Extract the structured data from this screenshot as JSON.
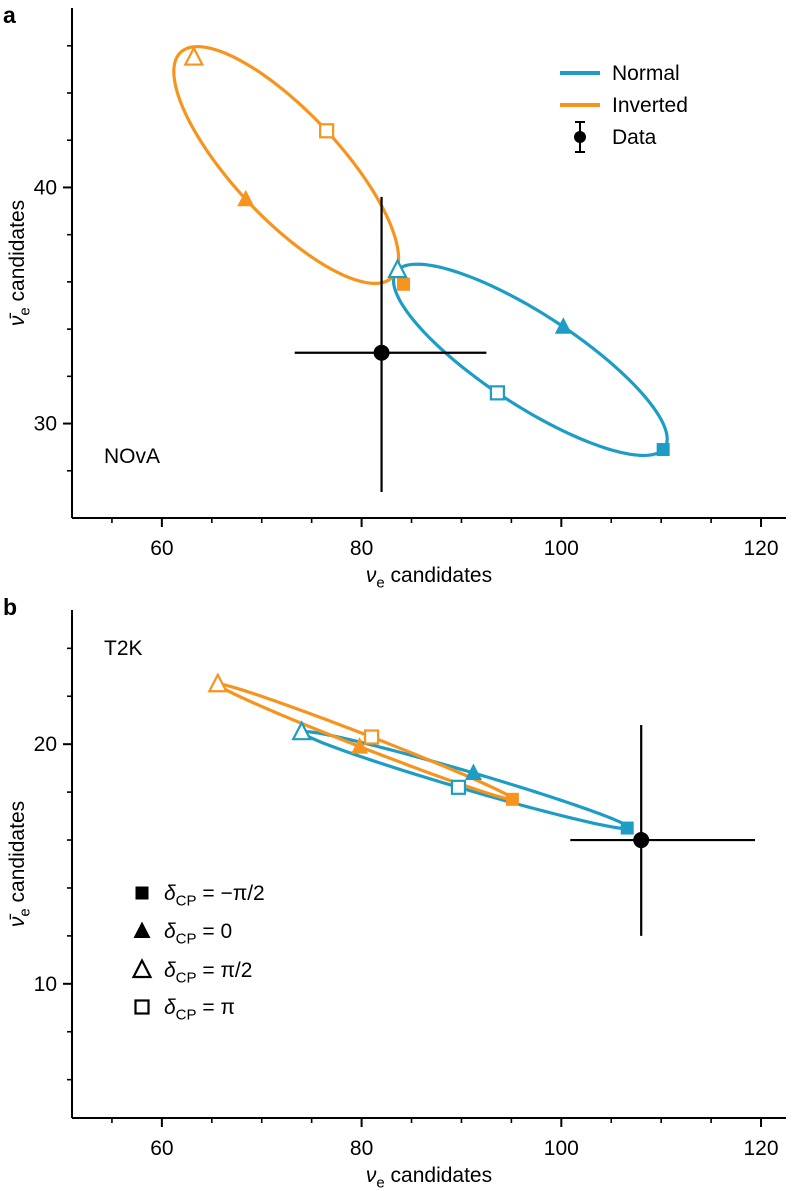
{
  "figure": {
    "background_color": "#ffffff",
    "accent_colors": {
      "normal_ordering": "#1d9dc6",
      "inverted_ordering": "#f7941d",
      "data": "#000000"
    }
  },
  "delta_marker_map": {
    "minus_half_pi": "filled-square",
    "zero": "filled-triangle",
    "half_pi": "open-triangle",
    "pi": "open-square"
  },
  "chart_data": [
    {
      "type": "scatter",
      "panel_label": "a",
      "experiment": "NOvA",
      "xlabel": "νe candidates",
      "xlabel_rich": "*ν*_{e} candidates",
      "ylabel": "ν̄e candidates",
      "ylabel_rich": "*ν̄*_{e} candidates",
      "xlim": [
        51,
        122.5
      ],
      "ylim": [
        26,
        47.6
      ],
      "xticks": [
        60,
        80,
        100,
        120
      ],
      "yticks": [
        30,
        40
      ],
      "x_minor_step": 5,
      "y_minor_step": 2,
      "grid": false,
      "legend_position": "upper right",
      "series": [
        {
          "name": "Normal",
          "color": "#1d9dc6",
          "delta_points": {
            "minus_half_pi": [
              110.2,
              28.9
            ],
            "zero": [
              100.2,
              34.1
            ],
            "half_pi": [
              83.6,
              36.5
            ],
            "pi": [
              93.6,
              31.3
            ]
          }
        },
        {
          "name": "Inverted",
          "color": "#f7941d",
          "delta_points": {
            "minus_half_pi": [
              84.2,
              35.9
            ],
            "zero": [
              68.4,
              39.5
            ],
            "half_pi": [
              63.2,
              45.5
            ],
            "pi": [
              76.5,
              42.4
            ]
          }
        }
      ],
      "data_point": {
        "x": 82,
        "y": 33,
        "xerr": [
          73.3,
          92.5
        ],
        "yerr": [
          27.1,
          39.6
        ]
      },
      "legend": [
        {
          "label": "Normal",
          "type": "line",
          "color": "#1d9dc6"
        },
        {
          "label": "Inverted",
          "type": "line",
          "color": "#f7941d"
        },
        {
          "label": "Data",
          "type": "data",
          "color": "#000000"
        }
      ]
    },
    {
      "type": "scatter",
      "panel_label": "b",
      "experiment": "T2K",
      "xlabel": "νe candidates",
      "xlabel_rich": "*ν*_{e} candidates",
      "ylabel": "ν̄e candidates",
      "ylabel_rich": "*ν̄*_{e} candidates",
      "xlim": [
        51,
        122.5
      ],
      "ylim": [
        4.4,
        25.6
      ],
      "xticks": [
        60,
        80,
        100,
        120
      ],
      "yticks": [
        10,
        20
      ],
      "x_minor_step": 5,
      "y_minor_step": 2,
      "grid": false,
      "legend_position": "lower left",
      "series": [
        {
          "name": "Normal",
          "color": "#1d9dc6",
          "delta_points": {
            "minus_half_pi": [
              106.6,
              16.5
            ],
            "zero": [
              91.2,
              18.8
            ],
            "half_pi": [
              74.0,
              20.5
            ],
            "pi": [
              89.7,
              18.2
            ]
          }
        },
        {
          "name": "Inverted",
          "color": "#f7941d",
          "delta_points": {
            "minus_half_pi": [
              95.1,
              17.7
            ],
            "zero": [
              79.8,
              19.9
            ],
            "half_pi": [
              65.6,
              22.5
            ],
            "pi": [
              81.0,
              20.3
            ]
          }
        }
      ],
      "data_point": {
        "x": 108,
        "y": 16,
        "xerr": [
          100.9,
          119.4
        ],
        "yerr": [
          12.0,
          20.8
        ]
      },
      "marker_legend": [
        {
          "label": "δCP = −π/2",
          "label_rich": "*δ*_{CP} = −π/2",
          "marker": "filled-square"
        },
        {
          "label": "δCP = 0",
          "label_rich": "*δ*_{CP} = 0",
          "marker": "filled-triangle"
        },
        {
          "label": "δCP = π/2",
          "label_rich": "*δ*_{CP} = π/2",
          "marker": "open-triangle"
        },
        {
          "label": "δCP = π",
          "label_rich": "*δ*_{CP} = π",
          "marker": "open-square"
        }
      ]
    }
  ]
}
